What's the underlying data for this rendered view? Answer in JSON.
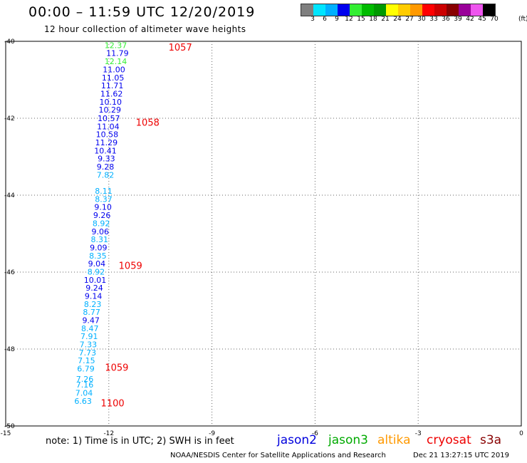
{
  "header": {
    "title": "00:00 – 11:59 UTC 12/20/2019",
    "subtitle": "12 hour collection of altimeter wave heights"
  },
  "colorbar": {
    "labels": [
      "3",
      "6",
      "9",
      "12",
      "15",
      "18",
      "21",
      "24",
      "27",
      "30",
      "33",
      "36",
      "39",
      "42",
      "45",
      "70"
    ],
    "unit": "(ft)",
    "colors": [
      "#7f7f7f",
      "#00e5ff",
      "#00b0ff",
      "#0000ee",
      "#33ee33",
      "#00bb00",
      "#009900",
      "#ffff00",
      "#ffcc00",
      "#ff9900",
      "#ff0000",
      "#cc0000",
      "#880000",
      "#990099",
      "#ee55ee",
      "#000000"
    ]
  },
  "note": "note: 1) Time is in UTC; 2) SWH is in feet",
  "legend": [
    {
      "label": "jason2",
      "color": "#0000dd"
    },
    {
      "label": "jason3",
      "color": "#00aa00"
    },
    {
      "label": "altika",
      "color": "#ff9900"
    },
    {
      "label": "cryosat",
      "color": "#ee0000"
    },
    {
      "label": "s3a",
      "color": "#880000"
    }
  ],
  "footer": {
    "credit": "NOAA/NESDIS Center for Satellite Applications and Research",
    "timestamp": "Dec 21 13:27:15 UTC 2019"
  },
  "chart_data": {
    "type": "scatter",
    "title": "00:00 – 11:59 UTC 12/20/2019",
    "xlim": [
      -15,
      0
    ],
    "ylim": [
      -50,
      -40
    ],
    "xticks": [
      -15,
      -12,
      -9,
      -6,
      -3,
      0
    ],
    "yticks": [
      -40,
      -42,
      -44,
      -46,
      -48,
      -50
    ],
    "xtick_labels": [
      "-15",
      "-12",
      "-9",
      "-6",
      "-3",
      "0"
    ],
    "ytick_labels": [
      "-40",
      "-42",
      "-44",
      "-46",
      "-48",
      "-50"
    ],
    "grid": true,
    "points": [
      {
        "x": -11.8,
        "y": -40.1,
        "v": "12.37",
        "c": "#33ee33"
      },
      {
        "x": -11.75,
        "y": -40.31,
        "v": "11.79",
        "c": "#0000ee"
      },
      {
        "x": -11.8,
        "y": -40.52,
        "v": "12.14",
        "c": "#33ee33"
      },
      {
        "x": -11.85,
        "y": -40.73,
        "v": "11.00",
        "c": "#0000ee"
      },
      {
        "x": -11.88,
        "y": -40.94,
        "v": "11.05",
        "c": "#0000ee"
      },
      {
        "x": -11.9,
        "y": -41.15,
        "v": "11.71",
        "c": "#0000ee"
      },
      {
        "x": -11.92,
        "y": -41.36,
        "v": "11.62",
        "c": "#0000ee"
      },
      {
        "x": -11.95,
        "y": -41.57,
        "v": "10.10",
        "c": "#0000ee"
      },
      {
        "x": -11.97,
        "y": -41.78,
        "v": "10.29",
        "c": "#0000ee"
      },
      {
        "x": -12.0,
        "y": -42.0,
        "v": "10.57",
        "c": "#0000ee"
      },
      {
        "x": -12.02,
        "y": -42.21,
        "v": "11.04",
        "c": "#0000ee"
      },
      {
        "x": -12.05,
        "y": -42.42,
        "v": "10.58",
        "c": "#0000ee"
      },
      {
        "x": -12.07,
        "y": -42.63,
        "v": "11.29",
        "c": "#0000ee"
      },
      {
        "x": -12.1,
        "y": -42.84,
        "v": "10.41",
        "c": "#0000ee"
      },
      {
        "x": -12.07,
        "y": -43.05,
        "v": "9.33",
        "c": "#0000ee"
      },
      {
        "x": -12.1,
        "y": -43.26,
        "v": "9.28",
        "c": "#0000ee"
      },
      {
        "x": -12.1,
        "y": -43.47,
        "v": "7.82",
        "c": "#00b0ff"
      },
      {
        "x": -12.15,
        "y": -43.89,
        "v": "8.11",
        "c": "#00b0ff"
      },
      {
        "x": -12.15,
        "y": -44.1,
        "v": "8.37",
        "c": "#00b0ff"
      },
      {
        "x": -12.17,
        "y": -44.31,
        "v": "9.10",
        "c": "#0000ee"
      },
      {
        "x": -12.2,
        "y": -44.52,
        "v": "9.26",
        "c": "#0000ee"
      },
      {
        "x": -12.22,
        "y": -44.73,
        "v": "8.92",
        "c": "#00b0ff"
      },
      {
        "x": -12.25,
        "y": -44.94,
        "v": "9.06",
        "c": "#0000ee"
      },
      {
        "x": -12.27,
        "y": -45.15,
        "v": "8.31",
        "c": "#00b0ff"
      },
      {
        "x": -12.3,
        "y": -45.36,
        "v": "9.09",
        "c": "#0000ee"
      },
      {
        "x": -12.32,
        "y": -45.57,
        "v": "8.35",
        "c": "#00b0ff"
      },
      {
        "x": -12.35,
        "y": -45.78,
        "v": "9.04",
        "c": "#0000ee"
      },
      {
        "x": -12.37,
        "y": -45.99,
        "v": "8.92",
        "c": "#00b0ff"
      },
      {
        "x": -12.4,
        "y": -46.2,
        "v": "10.01",
        "c": "#0000ee"
      },
      {
        "x": -12.42,
        "y": -46.41,
        "v": "9.24",
        "c": "#0000ee"
      },
      {
        "x": -12.45,
        "y": -46.62,
        "v": "9.14",
        "c": "#0000ee"
      },
      {
        "x": -12.47,
        "y": -46.83,
        "v": "8.23",
        "c": "#00b0ff"
      },
      {
        "x": -12.5,
        "y": -47.04,
        "v": "8.77",
        "c": "#00b0ff"
      },
      {
        "x": -12.52,
        "y": -47.25,
        "v": "9.47",
        "c": "#0000ee"
      },
      {
        "x": -12.55,
        "y": -47.46,
        "v": "8.47",
        "c": "#00b0ff"
      },
      {
        "x": -12.57,
        "y": -47.67,
        "v": "7.91",
        "c": "#00b0ff"
      },
      {
        "x": -12.6,
        "y": -47.88,
        "v": "7.33",
        "c": "#00b0ff"
      },
      {
        "x": -12.62,
        "y": -48.09,
        "v": "7.73",
        "c": "#00b0ff"
      },
      {
        "x": -12.65,
        "y": -48.3,
        "v": "7.15",
        "c": "#00b0ff"
      },
      {
        "x": -12.67,
        "y": -48.51,
        "v": "6.79",
        "c": "#00b0ff"
      },
      {
        "x": -12.7,
        "y": -48.78,
        "v": "7.26",
        "c": "#00b0ff"
      },
      {
        "x": -12.7,
        "y": -48.93,
        "v": "7.16",
        "c": "#00b0ff"
      },
      {
        "x": -12.72,
        "y": -49.14,
        "v": "7.04",
        "c": "#00b0ff"
      },
      {
        "x": -12.75,
        "y": -49.35,
        "v": "6.63",
        "c": "#00b0ff"
      }
    ],
    "annotations": [
      {
        "x": -9.92,
        "y": -40.15,
        "text": "1057",
        "color": "#ee0000"
      },
      {
        "x": -10.87,
        "y": -42.1,
        "text": "1058",
        "color": "#ee0000"
      },
      {
        "x": -11.37,
        "y": -45.82,
        "text": "1059",
        "color": "#ee0000"
      },
      {
        "x": -11.77,
        "y": -48.47,
        "text": "1059",
        "color": "#ee0000"
      },
      {
        "x": -11.89,
        "y": -49.4,
        "text": "1100",
        "color": "#ee0000"
      }
    ]
  }
}
